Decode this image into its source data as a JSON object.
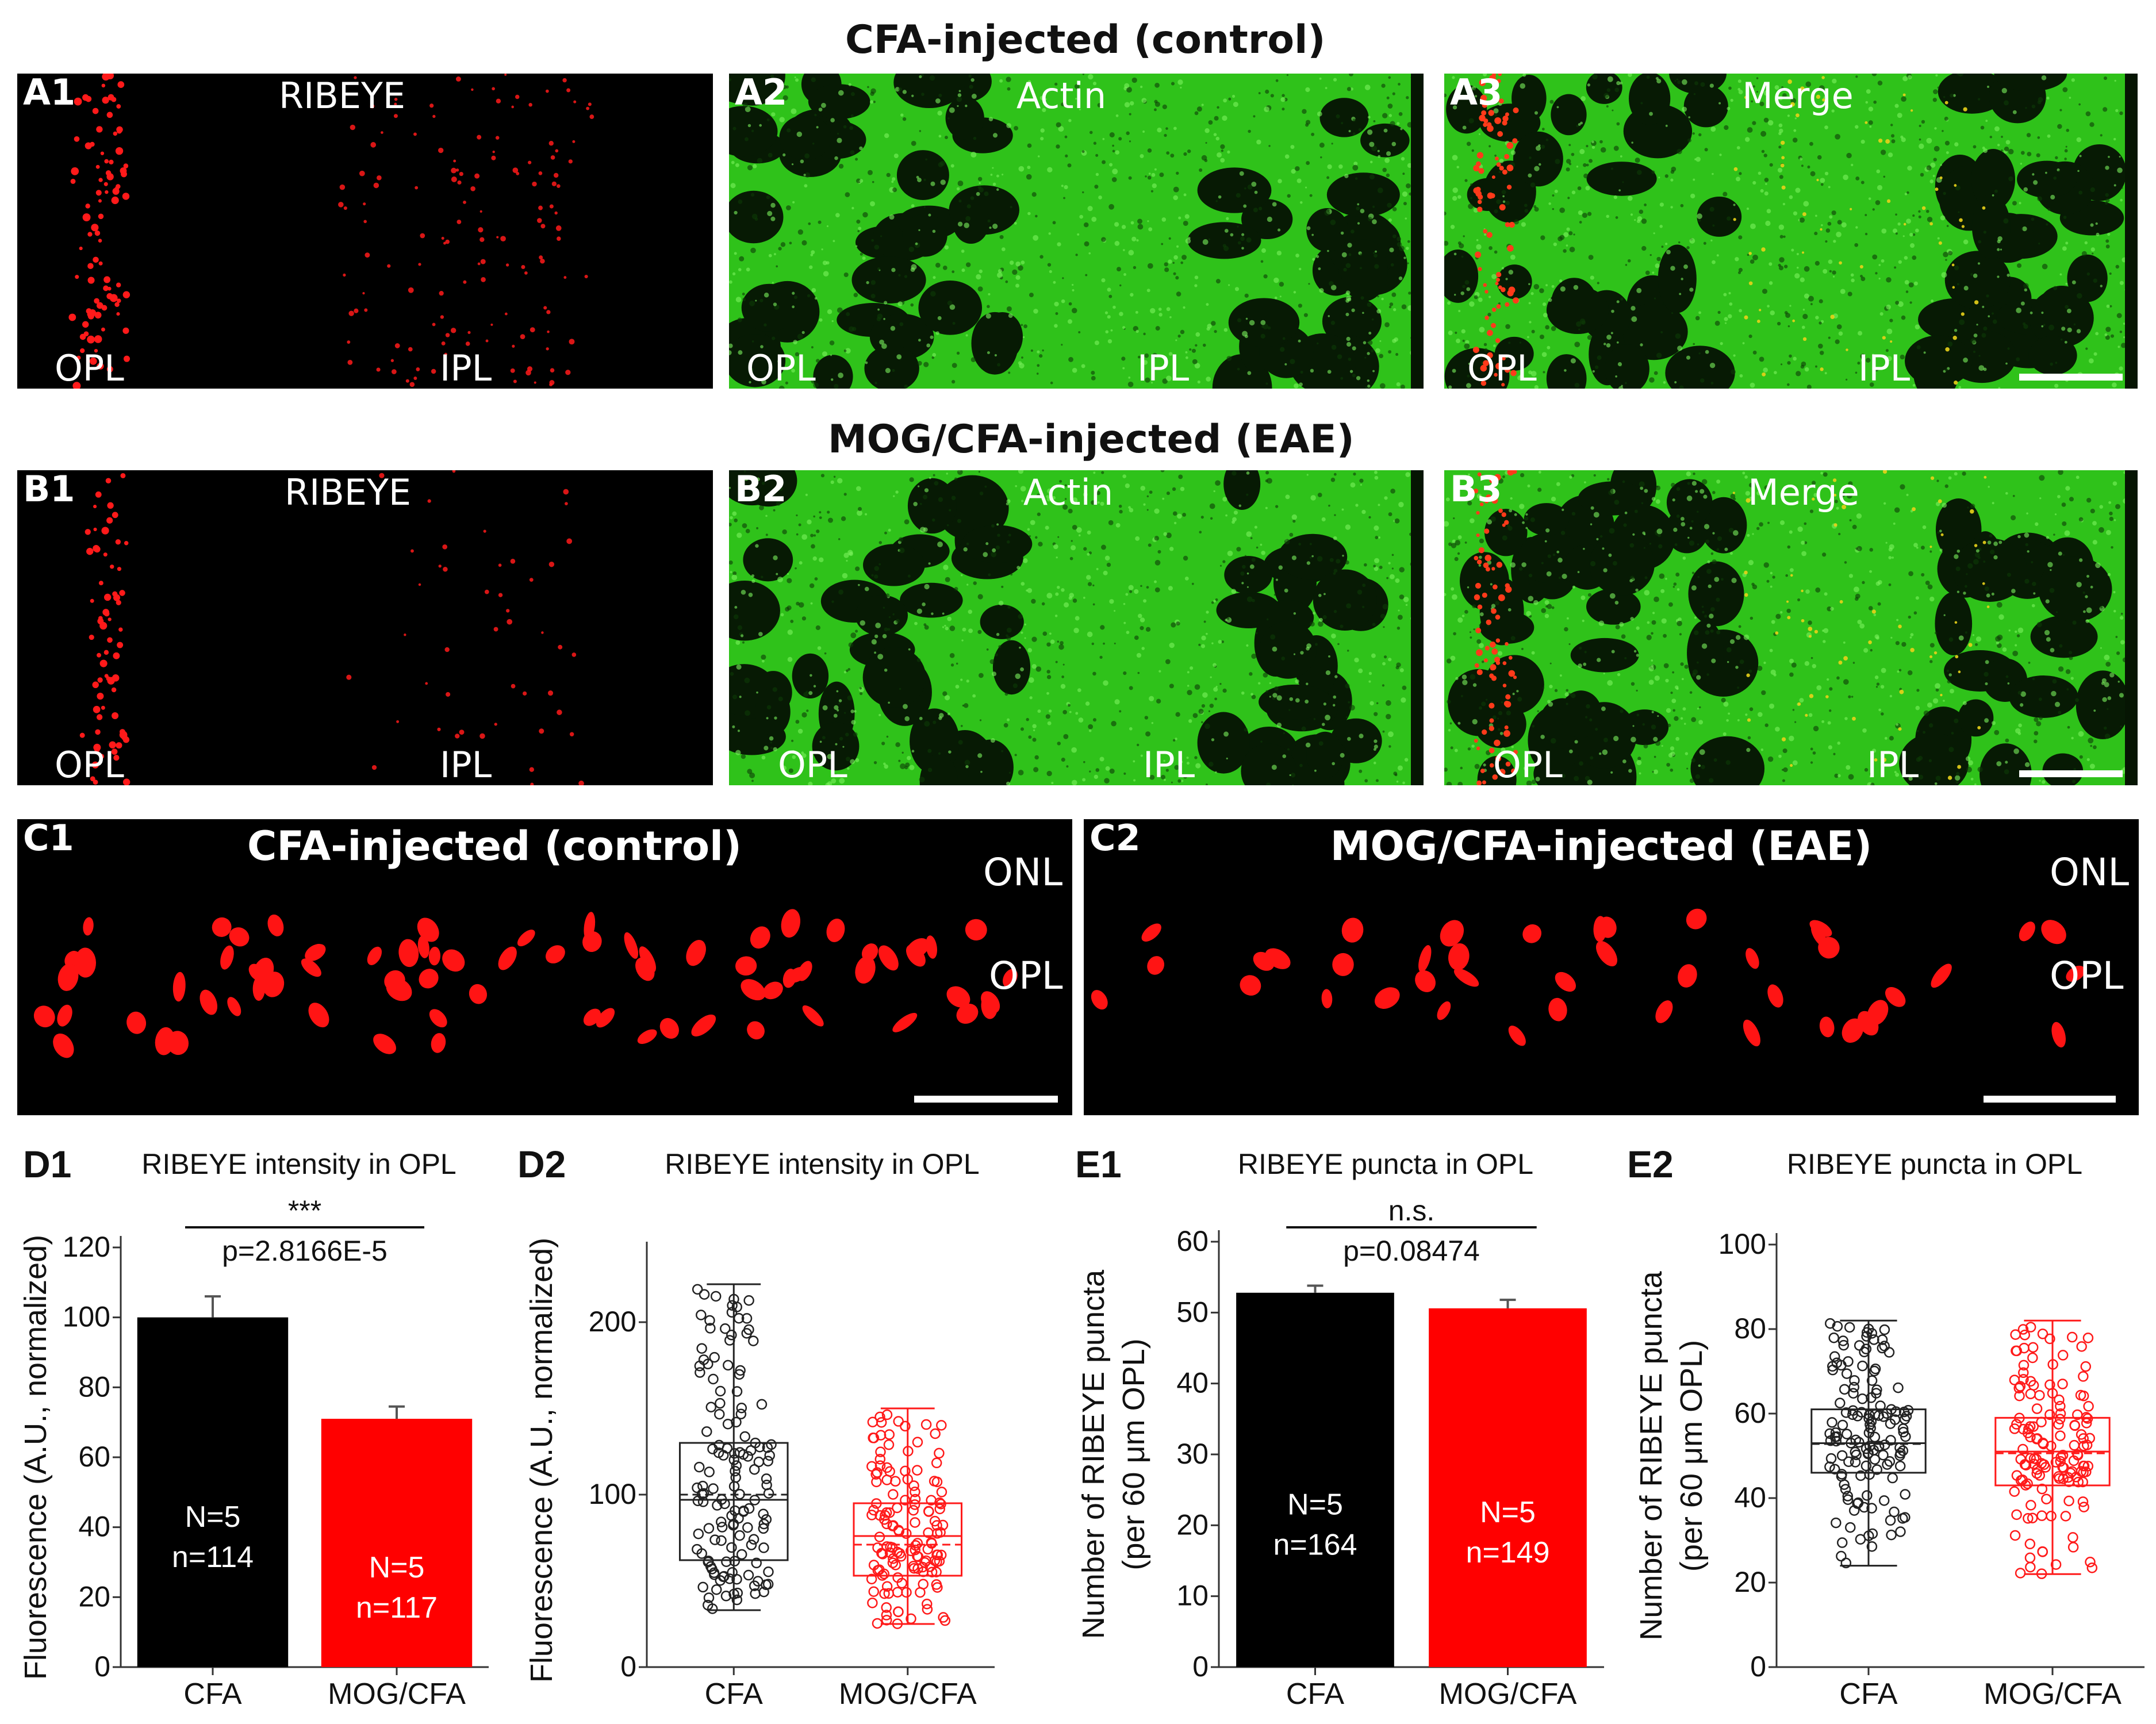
{
  "figure": {
    "row_a_title": "CFA-injected (control)",
    "row_b_title": "MOG/CFA-injected (EAE)",
    "panels_a": [
      {
        "label": "A1",
        "title": "RIBEYE",
        "opl": "OPL",
        "ipl": "IPL"
      },
      {
        "label": "A2",
        "title": "Actin",
        "opl": "OPL",
        "ipl": "IPL"
      },
      {
        "label": "A3",
        "title": "Merge",
        "opl": "OPL",
        "ipl": "IPL"
      }
    ],
    "panels_b": [
      {
        "label": "B1",
        "title": "RIBEYE",
        "opl": "OPL",
        "ipl": "IPL"
      },
      {
        "label": "B2",
        "title": "Actin",
        "opl": "OPL",
        "ipl": "IPL"
      },
      {
        "label": "B3",
        "title": "Merge",
        "opl": "OPL",
        "ipl": "IPL"
      }
    ],
    "panels_c": [
      {
        "label": "C1",
        "title": "CFA-injected (control)",
        "onl": "ONL",
        "opl": "OPL"
      },
      {
        "label": "C2",
        "title": "MOG/CFA-injected (EAE)",
        "onl": "ONL",
        "opl": "OPL"
      }
    ],
    "colors": {
      "control": "#000000",
      "eae": "#ff0000",
      "actin": "#3ad21f",
      "ribeye": "#ff1a1a"
    }
  },
  "chart_data": [
    {
      "id": "D1",
      "type": "bar",
      "panel_label": "D1",
      "title": "RIBEYE intensity  in OPL",
      "ylabel": "Fluorescence (A.U., normalized)",
      "categories": [
        "CFA",
        "MOG/CFA"
      ],
      "values": [
        100,
        71
      ],
      "errors": [
        6,
        3.5
      ],
      "yticks": [
        "0",
        "20",
        "40",
        "60",
        "80",
        "100",
        "120"
      ],
      "ylim": [
        0,
        120
      ],
      "bar_text": [
        [
          "N=5",
          "n=114"
        ],
        [
          "N=5",
          "n=117"
        ]
      ],
      "significance": "***",
      "pvalue": "p=2.8166E-5"
    },
    {
      "id": "D2",
      "type": "box",
      "panel_label": "D2",
      "title": "RIBEYE intensity  in OPL",
      "ylabel": "Fluorescence (A.U., normalized)",
      "categories": [
        "CFA",
        "MOG/CFA"
      ],
      "boxes": [
        {
          "min": 33,
          "q1": 62,
          "median": 97,
          "mean": 100,
          "q3": 130,
          "max": 222
        },
        {
          "min": 25,
          "q1": 53,
          "median": 76,
          "mean": 71,
          "q3": 95,
          "max": 150
        }
      ],
      "yticks": [
        "0",
        "100",
        "200"
      ],
      "ylim": [
        0,
        240
      ]
    },
    {
      "id": "E1",
      "type": "bar",
      "panel_label": "E1",
      "title": "RIBEYE puncta in OPL",
      "ylabel": "Number of RIBEYE puncta",
      "ylabel2": "(per 60 μm OPL)",
      "categories": [
        "CFA",
        "MOG/CFA"
      ],
      "values": [
        52.8,
        50.6
      ],
      "errors": [
        1.0,
        1.2
      ],
      "yticks": [
        "0",
        "10",
        "20",
        "30",
        "40",
        "50",
        "60"
      ],
      "ylim": [
        0,
        60
      ],
      "bar_text": [
        [
          "N=5",
          "n=164"
        ],
        [
          "N=5",
          "n=149"
        ]
      ],
      "significance": "n.s.",
      "pvalue": "p=0.08474"
    },
    {
      "id": "E2",
      "type": "box",
      "panel_label": "E2",
      "title": "RIBEYE puncta in OPL",
      "ylabel": "Number of RIBEYE puncta",
      "ylabel2": "(per 60 μm OPL)",
      "categories": [
        "CFA",
        "MOG/CFA"
      ],
      "boxes": [
        {
          "min": 24,
          "q1": 46,
          "median": 53,
          "mean": 52.8,
          "q3": 61,
          "max": 82
        },
        {
          "min": 22,
          "q1": 43,
          "median": 51,
          "mean": 50.6,
          "q3": 59,
          "max": 82
        }
      ],
      "yticks": [
        "0",
        "20",
        "40",
        "60",
        "80",
        "100"
      ],
      "ylim": [
        0,
        100
      ]
    }
  ]
}
